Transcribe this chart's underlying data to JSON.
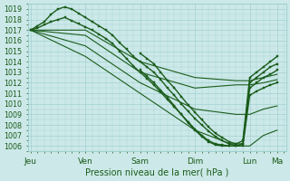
{
  "bg_color": "#cce8e8",
  "grid_color": "#99cccc",
  "line_color": "#1a5c1a",
  "marker_color": "#1a5c1a",
  "xlabel": "Pression niveau de la mer( hPa )",
  "ylim": [
    1005.5,
    1019.5
  ],
  "yticks": [
    1006,
    1007,
    1008,
    1009,
    1010,
    1011,
    1012,
    1013,
    1014,
    1015,
    1016,
    1017,
    1018,
    1019
  ],
  "xtick_labels": [
    "Jeu",
    "Ven",
    "Sam",
    "Dim",
    "Lun",
    "Ma"
  ],
  "xtick_positions": [
    0,
    24,
    48,
    72,
    96,
    108
  ],
  "xlim": [
    -1,
    112
  ],
  "lines": [
    {
      "x": [
        0,
        3,
        6,
        9,
        12,
        15,
        18,
        21,
        24,
        27,
        30,
        33,
        36,
        39,
        42,
        45,
        48,
        51,
        54,
        57,
        60,
        63,
        66,
        69,
        72,
        75,
        78,
        81,
        84,
        87,
        90,
        93,
        96,
        99,
        102,
        105,
        108
      ],
      "y": [
        1017.0,
        1017.4,
        1017.8,
        1018.5,
        1019.0,
        1019.2,
        1019.0,
        1018.6,
        1018.2,
        1017.8,
        1017.4,
        1017.0,
        1016.5,
        1015.8,
        1015.2,
        1014.5,
        1014.0,
        1013.5,
        1013.0,
        1012.3,
        1011.5,
        1010.8,
        1010.0,
        1009.3,
        1008.6,
        1008.0,
        1007.4,
        1006.9,
        1006.5,
        1006.2,
        1006.2,
        1006.5,
        1012.5,
        1013.0,
        1013.5,
        1014.0,
        1014.5
      ],
      "marker": true,
      "lw": 1.0
    },
    {
      "x": [
        0,
        3,
        6,
        9,
        12,
        15,
        18,
        21,
        24,
        27,
        30,
        33,
        36,
        39,
        42,
        45,
        48,
        51,
        54,
        57,
        60,
        63,
        66,
        69,
        72,
        75,
        78,
        81,
        84,
        87,
        90,
        93,
        96,
        99,
        102,
        105,
        108
      ],
      "y": [
        1017.0,
        1017.2,
        1017.5,
        1017.8,
        1018.0,
        1018.2,
        1017.9,
        1017.6,
        1017.3,
        1017.0,
        1016.6,
        1016.2,
        1015.7,
        1015.0,
        1014.3,
        1013.6,
        1013.0,
        1012.4,
        1011.8,
        1011.1,
        1010.4,
        1009.7,
        1009.0,
        1008.3,
        1007.6,
        1007.0,
        1006.5,
        1006.2,
        1006.1,
        1006.0,
        1006.0,
        1006.2,
        1012.0,
        1012.5,
        1013.0,
        1013.5,
        1013.8
      ],
      "marker": true,
      "lw": 1.0
    },
    {
      "x": [
        0,
        24,
        48,
        72,
        90,
        96,
        102,
        108
      ],
      "y": [
        1017.0,
        1017.0,
        1014.0,
        1012.5,
        1012.2,
        1012.2,
        1012.5,
        1012.8
      ],
      "marker": false,
      "lw": 0.8
    },
    {
      "x": [
        0,
        24,
        48,
        72,
        90,
        96,
        102,
        108
      ],
      "y": [
        1017.0,
        1016.5,
        1013.0,
        1011.5,
        1011.8,
        1011.8,
        1012.0,
        1012.3
      ],
      "marker": false,
      "lw": 0.8
    },
    {
      "x": [
        0,
        24,
        48,
        72,
        90,
        96,
        102,
        108
      ],
      "y": [
        1017.0,
        1015.5,
        1012.0,
        1009.5,
        1009.0,
        1009.0,
        1009.5,
        1009.8
      ],
      "marker": false,
      "lw": 0.8
    },
    {
      "x": [
        0,
        24,
        48,
        72,
        90,
        96,
        102,
        108
      ],
      "y": [
        1017.0,
        1014.5,
        1011.0,
        1007.5,
        1006.0,
        1006.0,
        1007.0,
        1007.5
      ],
      "marker": false,
      "lw": 0.8
    }
  ],
  "detail_lines": [
    {
      "x": [
        48,
        51,
        54,
        57,
        60,
        63,
        66,
        69,
        72,
        75,
        78,
        81,
        84,
        87,
        90,
        93,
        96,
        99,
        102,
        105,
        108
      ],
      "y": [
        1014.8,
        1014.3,
        1013.8,
        1013.0,
        1012.2,
        1011.5,
        1010.7,
        1009.9,
        1009.2,
        1008.5,
        1007.8,
        1007.2,
        1006.8,
        1006.4,
        1006.2,
        1006.2,
        1011.5,
        1012.0,
        1012.5,
        1012.8,
        1013.2
      ],
      "marker": true,
      "lw": 1.0
    },
    {
      "x": [
        48,
        51,
        54,
        57,
        60,
        63,
        66,
        69,
        72,
        75,
        78,
        81,
        84,
        87,
        90,
        93,
        96,
        99,
        102,
        105,
        108
      ],
      "y": [
        1013.2,
        1012.6,
        1012.0,
        1011.3,
        1010.6,
        1009.8,
        1009.0,
        1008.2,
        1007.5,
        1006.9,
        1006.4,
        1006.1,
        1006.0,
        1006.0,
        1006.0,
        1006.0,
        1010.8,
        1011.2,
        1011.5,
        1011.8,
        1012.0
      ],
      "marker": true,
      "lw": 1.0
    }
  ]
}
